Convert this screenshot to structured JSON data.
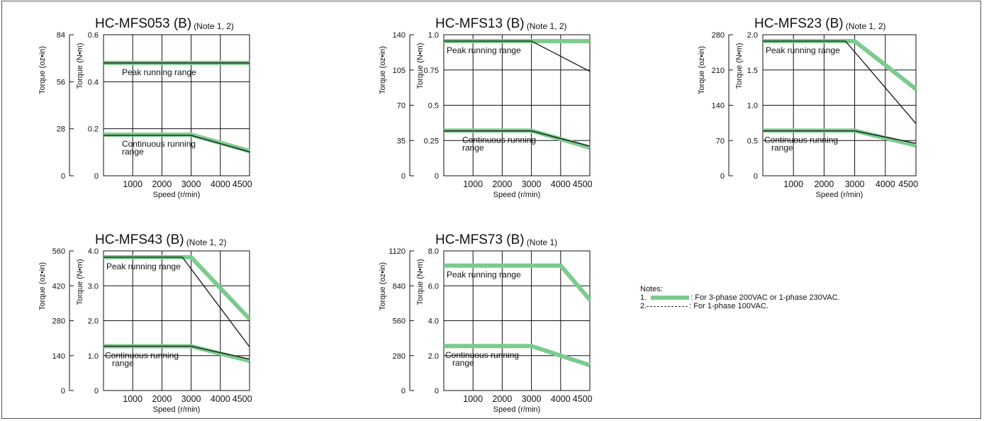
{
  "colors": {
    "green": "#7ccb8e",
    "black": "#111111",
    "grid": "#111111"
  },
  "chart_data": [
    {
      "type": "line",
      "title": "HC-MFS053 (B)",
      "note": "(Note 1, 2)",
      "xlabel": "Speed (r/min)",
      "ylabel": "Torque (N•m)",
      "ylabel2": "Torque (oz•in)",
      "xlim": [
        0,
        5000
      ],
      "ylim": [
        0,
        0.6
      ],
      "y2lim": [
        0,
        84
      ],
      "x_ticks": [
        "1000",
        "2000",
        "3000",
        "4000",
        "4500"
      ],
      "y_ticks": [
        "0",
        "0.2",
        "0.4",
        "0.6"
      ],
      "y_tick_values": [
        0,
        0.2,
        0.4,
        0.6
      ],
      "y2_ticks": [
        "0",
        "28",
        "56",
        "84"
      ],
      "y2_tick_values": [
        0,
        28,
        56,
        84
      ],
      "label_peak": "Peak running range",
      "label_cont": [
        "Continuous running",
        "range"
      ],
      "series": [
        {
          "style": "green",
          "x": [
            0,
            5000
          ],
          "y": [
            0.48,
            0.48
          ]
        },
        {
          "style": "green",
          "x": [
            0,
            3000,
            5000
          ],
          "y": [
            0.175,
            0.175,
            0.105
          ]
        },
        {
          "style": "black",
          "x": [
            0,
            5000
          ],
          "y": [
            0.48,
            0.48
          ]
        },
        {
          "style": "black",
          "x": [
            0,
            3000,
            5000
          ],
          "y": [
            0.172,
            0.172,
            0.102
          ]
        }
      ]
    },
    {
      "type": "line",
      "title": "HC-MFS13 (B)",
      "note": "(Note 1, 2)",
      "xlabel": "Speed (r/min)",
      "ylabel": "Torque (N•m)",
      "ylabel2": "Torque (oz•in)",
      "xlim": [
        0,
        5000
      ],
      "ylim": [
        0,
        1.0
      ],
      "y2lim": [
        0,
        140
      ],
      "x_ticks": [
        "1000",
        "2000",
        "3000",
        "4000",
        "4500"
      ],
      "y_ticks": [
        "0",
        "0.25",
        "0.5",
        "0.75",
        "1.0"
      ],
      "y_tick_values": [
        0,
        0.25,
        0.5,
        0.75,
        1.0
      ],
      "y2_ticks": [
        "0",
        "35",
        "70",
        "105",
        "140"
      ],
      "y2_tick_values": [
        0,
        35,
        70,
        105,
        140
      ],
      "label_peak": "Peak running range",
      "label_cont": [
        "Continuous running",
        "range"
      ],
      "series": [
        {
          "style": "green",
          "x": [
            0,
            5000
          ],
          "y": [
            0.955,
            0.955
          ]
        },
        {
          "style": "green",
          "x": [
            0,
            3000,
            5000
          ],
          "y": [
            0.32,
            0.32,
            0.2
          ]
        },
        {
          "style": "black",
          "x": [
            0,
            3000,
            5000
          ],
          "y": [
            0.955,
            0.955,
            0.74
          ]
        },
        {
          "style": "black",
          "x": [
            0,
            3000,
            5000
          ],
          "y": [
            0.318,
            0.318,
            0.21
          ]
        }
      ]
    },
    {
      "type": "line",
      "title": "HC-MFS23 (B)",
      "note": "(Note 1, 2)",
      "xlabel": "Speed (r/min)",
      "ylabel": "Torque (N•m)",
      "ylabel2": "Torque (oz•in)",
      "xlim": [
        0,
        5000
      ],
      "ylim": [
        0,
        2.0
      ],
      "y2lim": [
        0,
        280
      ],
      "x_ticks": [
        "1000",
        "2000",
        "3000",
        "4000",
        "4500"
      ],
      "y_ticks": [
        "0",
        "0.5",
        "1.0",
        "1.5",
        "2.0"
      ],
      "y_tick_values": [
        0,
        0.5,
        1.0,
        1.5,
        2.0
      ],
      "y2_ticks": [
        "0",
        "70",
        "140",
        "210",
        "280"
      ],
      "y2_tick_values": [
        0,
        70,
        140,
        210,
        280
      ],
      "label_peak": "Peak running range",
      "label_cont": [
        "Continuous running",
        "range"
      ],
      "series": [
        {
          "style": "green",
          "x": [
            0,
            3000,
            5000
          ],
          "y": [
            1.91,
            1.91,
            1.23
          ]
        },
        {
          "style": "green",
          "x": [
            0,
            3000,
            5000
          ],
          "y": [
            0.64,
            0.64,
            0.43
          ]
        },
        {
          "style": "black",
          "x": [
            0,
            2700,
            5000
          ],
          "y": [
            1.91,
            1.91,
            0.74
          ]
        },
        {
          "style": "black",
          "x": [
            0,
            3000,
            5000
          ],
          "y": [
            0.637,
            0.637,
            0.46
          ]
        }
      ]
    },
    {
      "type": "line",
      "title": "HC-MFS43 (B)",
      "note": "(Note 1, 2)",
      "xlabel": "Speed (r/min)",
      "ylabel": "Torque (N•m)",
      "ylabel2": "Torque (oz•in)",
      "xlim": [
        0,
        5000
      ],
      "ylim": [
        0,
        4.0
      ],
      "y2lim": [
        0,
        560
      ],
      "x_ticks": [
        "1000",
        "2000",
        "3000",
        "4000",
        "4500"
      ],
      "y_ticks": [
        "0",
        "1.0",
        "2.0",
        "3.0",
        "4.0"
      ],
      "y_tick_values": [
        0,
        1.0,
        2.0,
        3.0,
        4.0
      ],
      "y2_ticks": [
        "0",
        "140",
        "280",
        "420",
        "560"
      ],
      "y2_tick_values": [
        0,
        140,
        280,
        420,
        560
      ],
      "label_peak": "Peak running range",
      "label_cont": [
        "Continuous running",
        "range"
      ],
      "series": [
        {
          "style": "green",
          "x": [
            0,
            3000,
            5000
          ],
          "y": [
            3.82,
            3.82,
            2.05
          ]
        },
        {
          "style": "green",
          "x": [
            0,
            3000,
            5000
          ],
          "y": [
            1.27,
            1.27,
            0.85
          ]
        },
        {
          "style": "black",
          "x": [
            0,
            2700,
            5000
          ],
          "y": [
            3.82,
            3.82,
            1.25
          ]
        },
        {
          "style": "black",
          "x": [
            0,
            3000,
            5000
          ],
          "y": [
            1.27,
            1.27,
            0.9
          ]
        }
      ]
    },
    {
      "type": "line",
      "title": "HC-MFS73 (B)",
      "note": "(Note 1)",
      "xlabel": "Speed (r/min)",
      "ylabel": "Torque (N•m)",
      "ylabel2": "Torque (oz•in)",
      "xlim": [
        0,
        5000
      ],
      "ylim": [
        0,
        8.0
      ],
      "y2lim": [
        0,
        1120
      ],
      "x_ticks": [
        "1000",
        "2000",
        "3000",
        "4000",
        "4500"
      ],
      "y_ticks": [
        "0",
        "2.0",
        "4.0",
        "6.0",
        "8.0"
      ],
      "y_tick_values": [
        0,
        2.0,
        4.0,
        6.0,
        8.0
      ],
      "y2_ticks": [
        "0",
        "280",
        "560",
        "840",
        "1120"
      ],
      "y2_tick_values": [
        0,
        280,
        560,
        840,
        1120
      ],
      "label_peak": "Peak running range",
      "label_cont": [
        "Continuous running",
        "range"
      ],
      "series": [
        {
          "style": "green",
          "x": [
            0,
            4000,
            5000
          ],
          "y": [
            7.16,
            7.16,
            5.2
          ]
        },
        {
          "style": "green",
          "x": [
            0,
            3000,
            5000
          ],
          "y": [
            2.55,
            2.55,
            1.45
          ]
        }
      ]
    }
  ],
  "notes": {
    "heading": "Notes:",
    "item1_num": "1.",
    "item1_text": ": For 3-phase 200VAC or 1-phase 230VAC.",
    "item2_num": "2.",
    "item2_text": ": For 1-phase 100VAC."
  }
}
